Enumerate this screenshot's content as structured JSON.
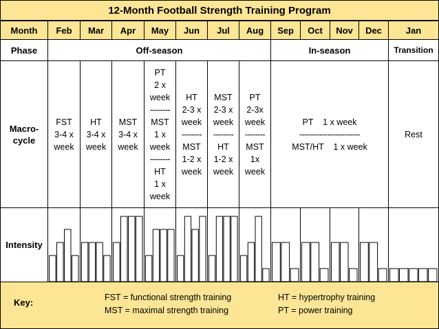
{
  "title": "12-Month Football Strength Training Program",
  "row_labels": {
    "month": "Month",
    "phase": "Phase",
    "macrocycle_line1": "Macro-",
    "macrocycle_line2": "cycle",
    "intensity": "Intensity"
  },
  "months": [
    "Feb",
    "Mar",
    "Apr",
    "May",
    "Jun",
    "Jul",
    "Aug",
    "Sep",
    "Oct",
    "Nov",
    "Dec",
    "Jan"
  ],
  "phases": {
    "off_season": "Off-season",
    "in_season": "In-season",
    "transition": "Transition"
  },
  "macrocycle": {
    "feb": [
      "FST",
      "3-4 x",
      "week"
    ],
    "mar": [
      "HT",
      "3-4 x",
      "week"
    ],
    "apr": [
      "MST",
      "3-4 x",
      "week"
    ],
    "may": [
      "PT",
      "2 x",
      "week",
      "--------",
      "MST",
      "1 x",
      "week",
      "--------",
      "HT",
      "1 x",
      "week"
    ],
    "jun": [
      "HT",
      "2-3 x",
      "week",
      "--------",
      "MST",
      "1-2 x",
      "week"
    ],
    "jul": [
      "MST",
      "2-3 x",
      "week",
      "--------",
      "HT",
      "1-2 x",
      "week"
    ],
    "aug": [
      "PT",
      "2-3x",
      "week",
      "--------",
      "MST",
      "1x",
      "week"
    ],
    "in_season": [
      "PT    1 x week",
      "------------------------",
      "MST/HT    1 x week"
    ],
    "jan": [
      "Rest"
    ]
  },
  "intensity": {
    "feb": [
      2,
      3,
      4,
      2
    ],
    "mar": [
      3,
      3,
      3,
      2
    ],
    "apr": [
      3,
      5,
      5,
      5
    ],
    "may": [
      2,
      4,
      4,
      4
    ],
    "jun": [
      2,
      5,
      4,
      5
    ],
    "jul": [
      2,
      5,
      5,
      5
    ],
    "aug": [
      2,
      3,
      5,
      1
    ],
    "sep": [
      3,
      3,
      1
    ],
    "oct": [
      3,
      3,
      1
    ],
    "nov": [
      3,
      3,
      1
    ],
    "dec": [
      3,
      3,
      1
    ],
    "jan": [
      1,
      1,
      1,
      1,
      1
    ]
  },
  "key": {
    "label": "Key:",
    "fst": "FST = functional strength training",
    "mst": "MST = maximal strength training",
    "ht": "HT = hypertrophy training",
    "pt": "PT = power training"
  },
  "colors": {
    "header_fill": "#fce595",
    "bar_fill": "#ffffff",
    "border": "#000000"
  }
}
